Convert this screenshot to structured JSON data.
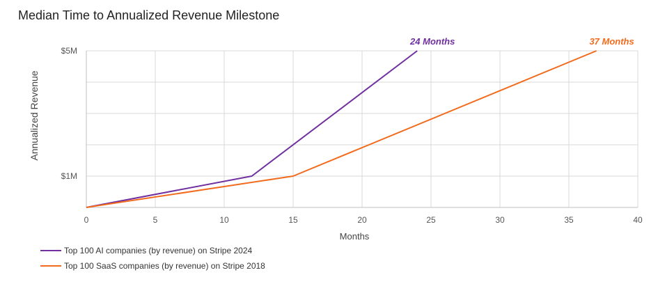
{
  "chart_data": {
    "type": "line",
    "title": "Median Time to Annualized Revenue Milestone",
    "xlabel": "Months",
    "ylabel": "Annualized Revenue",
    "xlim": [
      0,
      40
    ],
    "x_ticks": [
      "0",
      "5",
      "10",
      "15",
      "20",
      "25",
      "30",
      "35",
      "40"
    ],
    "ylim": [
      0,
      5
    ],
    "y_ticks": [
      {
        "value": 1,
        "label": "$1M"
      },
      {
        "value": 5,
        "label": "$5M"
      }
    ],
    "grid": true,
    "legend_position": "bottom-left",
    "series": [
      {
        "name": "Top 100 AI companies (by revenue) on Stripe 2024",
        "color": "#7030a0",
        "x": [
          0,
          12,
          24
        ],
        "y": [
          0,
          1,
          5
        ],
        "end_label": "24 Months"
      },
      {
        "name": "Top 100 SaaS companies (by revenue) on Stripe 2018",
        "color": "#f26b1d",
        "x": [
          0,
          15,
          37
        ],
        "y": [
          0,
          1,
          5
        ],
        "end_label": "37 Months"
      }
    ]
  }
}
